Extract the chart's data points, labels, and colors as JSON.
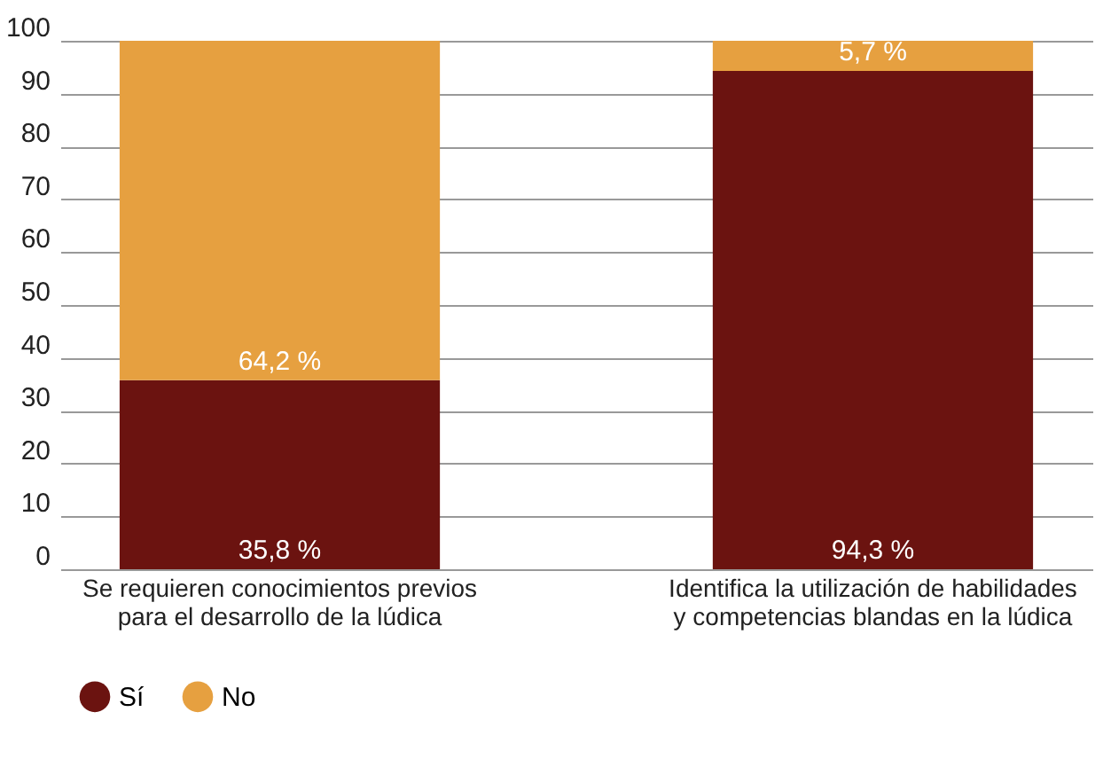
{
  "chart_data": {
    "type": "bar",
    "stacked": true,
    "categories": [
      "Se requieren conocimientos previos para el desarrollo de la lúdica",
      "Identifica la utilización de habilidades y competencias blandas en la lúdica"
    ],
    "series": [
      {
        "name": "Sí",
        "color": "#6b1310",
        "values": [
          35.8,
          94.3
        ],
        "value_labels": [
          "35,8 %",
          "94,3 %"
        ]
      },
      {
        "name": "No",
        "color": "#e6a040",
        "values": [
          64.2,
          5.7
        ],
        "value_labels": [
          "64,2 %",
          "5,7 %"
        ]
      }
    ],
    "ylim": [
      0,
      100
    ],
    "yticks": [
      0,
      10,
      20,
      30,
      40,
      50,
      60,
      70,
      80,
      90,
      100
    ],
    "grid": "y",
    "legend": "bottom"
  }
}
